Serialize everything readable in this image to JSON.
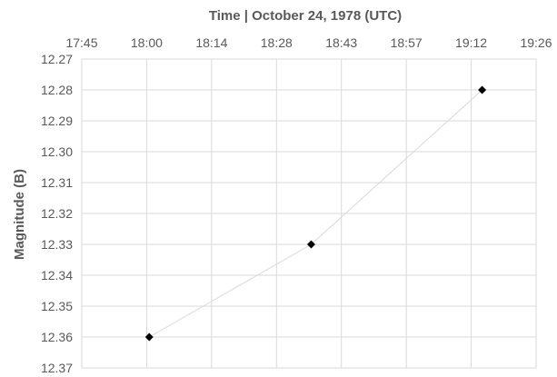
{
  "chart_data": {
    "type": "scatter",
    "title": "Time | October 24, 1978 (UTC)",
    "xlabel": "Time | October 24, 1978 (UTC)",
    "ylabel": "Magnitude (B)",
    "x_tick_labels": [
      "17:45",
      "18:00",
      "18:14",
      "18:28",
      "18:43",
      "18:57",
      "19:12",
      "19:26"
    ],
    "y_tick_labels": [
      "12.27",
      "12.28",
      "12.29",
      "12.30",
      "12.31",
      "12.32",
      "12.33",
      "12.34",
      "12.35",
      "12.36",
      "12.37"
    ],
    "xlim": [
      "17:45",
      "19:26"
    ],
    "ylim": [
      12.27,
      12.37
    ],
    "y_reversed": true,
    "x_axis_position": "top",
    "grid": true,
    "legend": "none",
    "series": [
      {
        "x": [
          "18:00",
          "18:36",
          "19:14"
        ],
        "y": [
          12.36,
          12.33,
          12.28
        ],
        "marker": "diamond",
        "line": true
      }
    ],
    "colors": {
      "marker": "#000000",
      "line": "#d9d9d9",
      "grid": "#d9d9d9",
      "text": "#595959"
    }
  }
}
